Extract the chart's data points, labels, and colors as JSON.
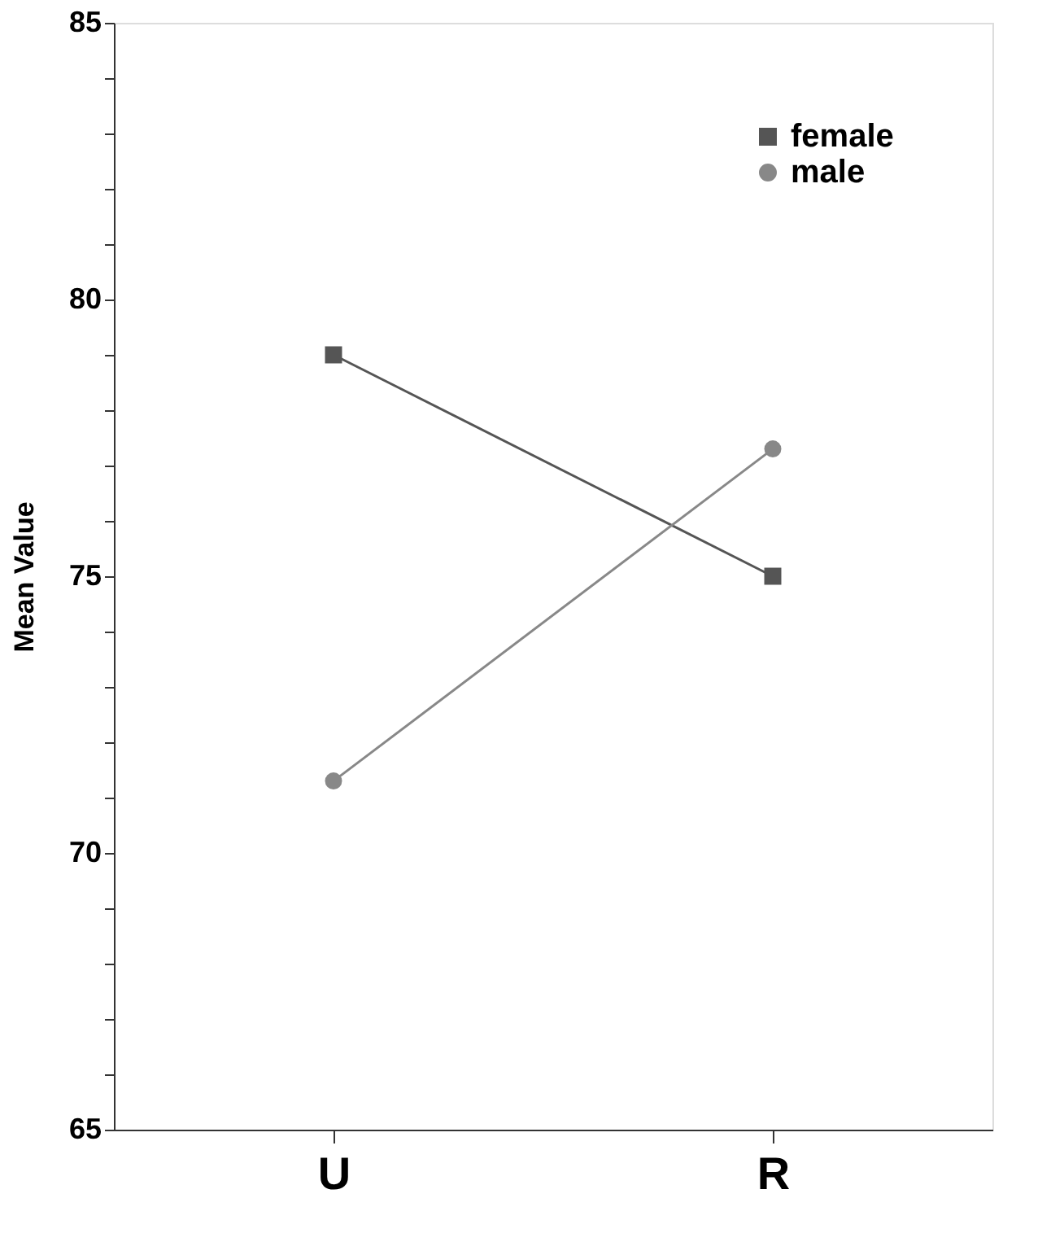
{
  "chart_data": {
    "type": "line",
    "ylabel": "Mean Value",
    "categories": [
      "U",
      "R"
    ],
    "series": [
      {
        "name": "female",
        "color": "#555555",
        "marker": "square",
        "values": [
          79,
          75
        ]
      },
      {
        "name": "male",
        "color": "#888888",
        "marker": "circle",
        "values": [
          71.3,
          77.3
        ]
      }
    ],
    "ylim": [
      65,
      85
    ],
    "yticks": [
      65,
      {
        "value": 66,
        "label": null
      },
      {
        "value": 67,
        "label": null
      },
      {
        "value": 68,
        "label": null
      },
      {
        "value": 69,
        "label": null
      },
      70,
      {
        "value": 71,
        "label": null
      },
      {
        "value": 72,
        "label": null
      },
      {
        "value": 73,
        "label": null
      },
      {
        "value": 74,
        "label": null
      },
      75,
      {
        "value": 76,
        "label": null
      },
      {
        "value": 77,
        "label": null
      },
      {
        "value": 78,
        "label": null
      },
      {
        "value": 79,
        "label": null
      },
      80,
      {
        "value": 81,
        "label": null
      },
      {
        "value": 82,
        "label": null
      },
      {
        "value": 83,
        "label": null
      },
      {
        "value": 84,
        "label": null
      },
      85
    ],
    "grid": false,
    "legend": "top right",
    "line_style": "solid"
  }
}
